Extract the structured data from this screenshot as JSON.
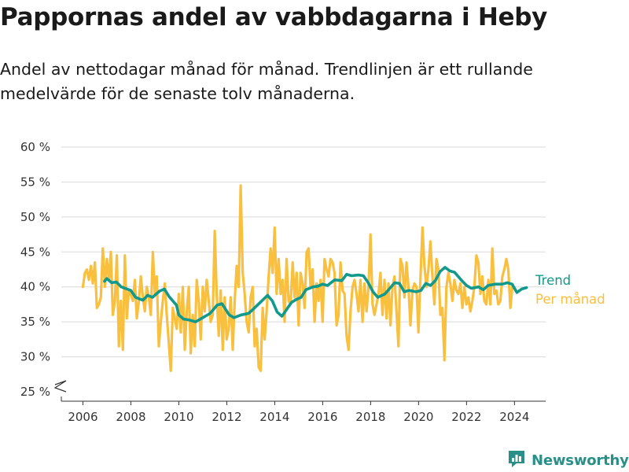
{
  "title": "Pappornas andel av vabbdagarna i Heby",
  "subtitle": "Andel av nettodagar månad för månad. Trendlinjen är ett rullande medelvärde för de senaste tolv månaderna.",
  "brand": {
    "name": "Newsworthy",
    "icon": "newsworthy-logo-icon"
  },
  "colors": {
    "trend": "#12998c",
    "monthly": "#f9bf3f",
    "grid": "#d9d9d9",
    "axis": "#333333"
  },
  "chart_data": {
    "type": "line",
    "title": "Pappornas andel av vabbdagarna i Heby",
    "xlabel": "",
    "ylabel": "",
    "x_ticks": [
      "2006",
      "2008",
      "2010",
      "2012",
      "2014",
      "2016",
      "2018",
      "2020",
      "2022",
      "2024"
    ],
    "y_ticks": [
      "25 %",
      "30 %",
      "35 %",
      "40 %",
      "45 %",
      "50 %",
      "55 %",
      "60 %"
    ],
    "ylim": [
      25,
      60
    ],
    "xlim": [
      2005.1,
      2025.3
    ],
    "legend_position": "right",
    "series": [
      {
        "name": "Per månad",
        "color": "#f9bf3f",
        "start": 2006.0,
        "step": 0.0833,
        "values": [
          40.0,
          42.0,
          42.5,
          41.0,
          43.0,
          40.5,
          43.5,
          37.0,
          37.5,
          38.5,
          45.5,
          40.0,
          44.0,
          41.0,
          45.0,
          36.0,
          38.0,
          44.5,
          31.5,
          38.0,
          31.0,
          44.5,
          35.5,
          39.5,
          39.0,
          38.0,
          41.0,
          35.5,
          38.0,
          41.5,
          38.5,
          36.5,
          40.0,
          38.5,
          36.0,
          45.0,
          39.0,
          41.5,
          31.5,
          35.0,
          38.0,
          40.5,
          36.0,
          32.0,
          28.0,
          37.0,
          35.5,
          34.0,
          39.0,
          33.5,
          40.0,
          31.0,
          36.5,
          40.0,
          30.5,
          36.0,
          31.5,
          41.0,
          38.0,
          32.5,
          40.0,
          36.5,
          41.0,
          38.0,
          35.0,
          36.0,
          48.0,
          39.0,
          33.0,
          39.5,
          31.0,
          38.5,
          32.5,
          34.0,
          38.5,
          31.0,
          38.0,
          43.0,
          40.0,
          54.5,
          42.0,
          39.0,
          35.0,
          33.5,
          38.5,
          40.0,
          31.5,
          34.0,
          28.5,
          28.0,
          37.0,
          32.5,
          36.5,
          41.5,
          45.5,
          42.0,
          48.5,
          39.0,
          44.0,
          39.0,
          41.0,
          35.0,
          44.0,
          38.0,
          37.5,
          43.5,
          38.5,
          42.0,
          34.5,
          42.0,
          40.5,
          37.0,
          45.0,
          45.5,
          40.0,
          42.5,
          35.0,
          40.5,
          38.0,
          41.0,
          35.0,
          44.0,
          42.5,
          41.5,
          44.0,
          43.5,
          42.0,
          34.5,
          36.0,
          43.5,
          39.5,
          39.0,
          33.0,
          31.0,
          36.5,
          40.0,
          41.0,
          39.0,
          36.5,
          41.0,
          35.0,
          40.5,
          36.5,
          40.0,
          47.5,
          37.5,
          36.0,
          37.5,
          39.0,
          42.0,
          36.0,
          41.0,
          35.5,
          40.5,
          34.5,
          40.0,
          41.5,
          36.5,
          31.5,
          44.0,
          43.0,
          38.5,
          43.5,
          40.0,
          34.5,
          39.5,
          40.5,
          40.0,
          33.5,
          41.0,
          48.5,
          43.0,
          40.0,
          42.5,
          46.5,
          41.5,
          37.5,
          44.0,
          42.5,
          36.0,
          37.0,
          29.5,
          40.0,
          42.0,
          40.5,
          38.0,
          41.0,
          39.5,
          39.0,
          40.5,
          37.0,
          40.0,
          37.5,
          38.5,
          36.5,
          38.0,
          40.0,
          44.5,
          43.5,
          39.0,
          41.5,
          38.0,
          37.5,
          41.0,
          37.5,
          45.5,
          39.0,
          39.5,
          37.5,
          38.0,
          41.5,
          42.5,
          44.0,
          42.5,
          37.0,
          40.0
        ]
      },
      {
        "name": "Trend",
        "color": "#12998c",
        "points": [
          [
            2006.9,
            40.8
          ],
          [
            2007.0,
            41.2
          ],
          [
            2007.2,
            40.6
          ],
          [
            2007.4,
            40.7
          ],
          [
            2007.6,
            40.0
          ],
          [
            2008.0,
            39.5
          ],
          [
            2008.2,
            38.5
          ],
          [
            2008.5,
            38.1
          ],
          [
            2008.7,
            38.8
          ],
          [
            2008.9,
            38.5
          ],
          [
            2009.2,
            39.4
          ],
          [
            2009.4,
            39.7
          ],
          [
            2009.6,
            38.6
          ],
          [
            2009.9,
            37.4
          ],
          [
            2010.0,
            36.0
          ],
          [
            2010.2,
            35.4
          ],
          [
            2010.4,
            35.3
          ],
          [
            2010.7,
            35.0
          ],
          [
            2011.0,
            35.6
          ],
          [
            2011.3,
            36.2
          ],
          [
            2011.6,
            37.4
          ],
          [
            2011.8,
            37.6
          ],
          [
            2012.1,
            36.0
          ],
          [
            2012.3,
            35.6
          ],
          [
            2012.6,
            36.0
          ],
          [
            2012.9,
            36.2
          ],
          [
            2013.1,
            36.8
          ],
          [
            2013.4,
            37.8
          ],
          [
            2013.7,
            38.8
          ],
          [
            2013.9,
            38.0
          ],
          [
            2014.1,
            36.4
          ],
          [
            2014.3,
            35.8
          ],
          [
            2014.5,
            36.8
          ],
          [
            2014.7,
            37.8
          ],
          [
            2014.9,
            38.2
          ],
          [
            2015.1,
            38.5
          ],
          [
            2015.3,
            39.6
          ],
          [
            2015.6,
            40.0
          ],
          [
            2015.8,
            40.1
          ],
          [
            2016.0,
            40.4
          ],
          [
            2016.2,
            40.2
          ],
          [
            2016.5,
            41.0
          ],
          [
            2016.8,
            40.9
          ],
          [
            2017.0,
            41.8
          ],
          [
            2017.2,
            41.6
          ],
          [
            2017.5,
            41.7
          ],
          [
            2017.7,
            41.6
          ],
          [
            2017.9,
            40.6
          ],
          [
            2018.1,
            39.3
          ],
          [
            2018.3,
            38.5
          ],
          [
            2018.6,
            39.0
          ],
          [
            2018.8,
            39.8
          ],
          [
            2019.0,
            40.6
          ],
          [
            2019.2,
            40.5
          ],
          [
            2019.4,
            39.3
          ],
          [
            2019.6,
            39.5
          ],
          [
            2019.9,
            39.3
          ],
          [
            2020.1,
            39.5
          ],
          [
            2020.3,
            40.5
          ],
          [
            2020.5,
            40.2
          ],
          [
            2020.7,
            40.9
          ],
          [
            2020.9,
            42.2
          ],
          [
            2021.1,
            42.8
          ],
          [
            2021.3,
            42.3
          ],
          [
            2021.5,
            42.1
          ],
          [
            2021.8,
            40.9
          ],
          [
            2022.0,
            40.2
          ],
          [
            2022.2,
            39.8
          ],
          [
            2022.5,
            40.0
          ],
          [
            2022.7,
            39.6
          ],
          [
            2022.9,
            40.2
          ],
          [
            2023.2,
            40.4
          ],
          [
            2023.5,
            40.4
          ],
          [
            2023.7,
            40.6
          ],
          [
            2023.9,
            40.4
          ],
          [
            2024.1,
            39.2
          ],
          [
            2024.3,
            39.7
          ],
          [
            2024.5,
            39.9
          ]
        ]
      }
    ]
  }
}
